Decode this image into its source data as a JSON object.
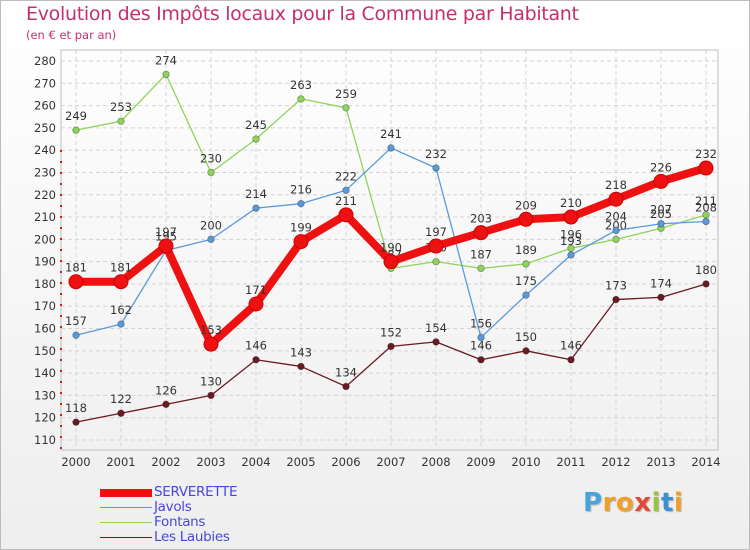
{
  "title": "Evolution des Impôts locaux pour la Commune par Habitant",
  "subtitle": "(en € et par an)",
  "logo": {
    "letters": [
      "P",
      "r",
      "o",
      "x",
      "i",
      "t",
      "i"
    ],
    "colors": [
      "#4aa3d8",
      "#f0a02a",
      "#f0a02a",
      "#e04b3c",
      "#9ac43c",
      "#3c8fd0",
      "#f0a02a"
    ]
  },
  "chart_data": {
    "type": "line",
    "title": "Evolution des Impôts locaux pour la Commune par Habitant",
    "subtitle": "(en € et par an)",
    "x": [
      "2000",
      "2001",
      "2002",
      "2003",
      "2004",
      "2005",
      "2006",
      "2007",
      "2008",
      "2009",
      "2010",
      "2011",
      "2012",
      "2013",
      "2014"
    ],
    "ylim": [
      110,
      280
    ],
    "yticks": [
      110,
      120,
      130,
      140,
      150,
      160,
      170,
      180,
      190,
      200,
      210,
      220,
      230,
      240,
      250,
      260,
      270,
      280
    ],
    "grid": true,
    "legend_position": "bottom-left",
    "series": [
      {
        "name": "Les Laubies",
        "color": "#6b1a22",
        "values": [
          118,
          122,
          126,
          130,
          146,
          143,
          134,
          152,
          154,
          146,
          150,
          146,
          173,
          174,
          180
        ]
      },
      {
        "name": "Fontans",
        "color": "#8fd45a",
        "values": [
          249,
          253,
          274,
          230,
          245,
          263,
          259,
          187,
          190,
          187,
          189,
          196,
          200,
          205,
          211
        ]
      },
      {
        "name": "Javols",
        "color": "#5a9ad8",
        "values": [
          157,
          162,
          195,
          200,
          214,
          216,
          222,
          241,
          232,
          156,
          175,
          193,
          204,
          207,
          208
        ]
      },
      {
        "name": "SERVERETTE",
        "color": "#ee1111",
        "values": [
          181,
          181,
          197,
          153,
          171,
          199,
          211,
          190,
          197,
          203,
          209,
          210,
          218,
          226,
          232
        ]
      }
    ],
    "legend_order": [
      "SERVERETTE",
      "Javols",
      "Fontans",
      "Les Laubies"
    ]
  }
}
